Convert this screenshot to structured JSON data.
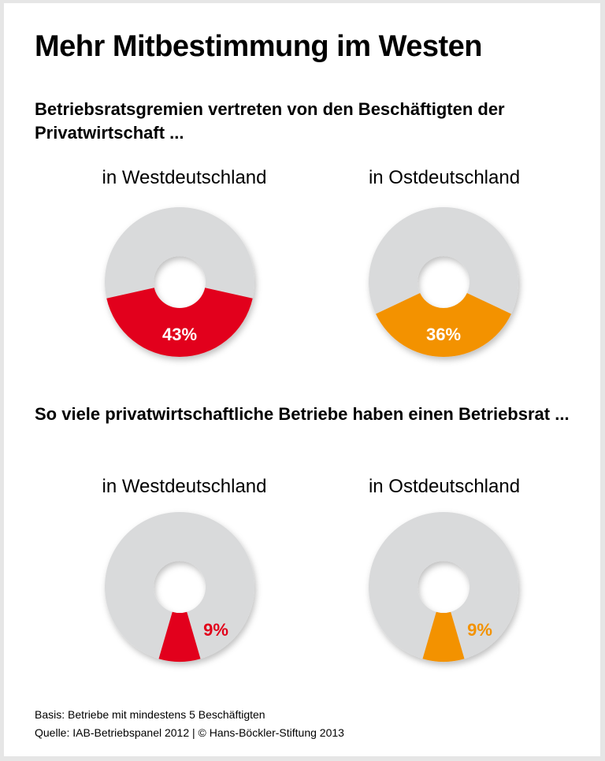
{
  "title": "Mehr Mitbestimmung im Westen",
  "colors": {
    "west": "#e2001a",
    "ost": "#f39200",
    "rest": "#d9dadb"
  },
  "chart_data": [
    {
      "type": "pie",
      "subtitle": "Betriebsratsgremien vertreten von den Beschäftigten der Privatwirtschaft ...",
      "panels": [
        {
          "label": "in Westdeutschland",
          "value": 43,
          "value_label": "43%",
          "color": "#e2001a"
        },
        {
          "label": "in Ostdeutschland",
          "value": 36,
          "value_label": "36%",
          "color": "#f39200"
        }
      ]
    },
    {
      "type": "pie",
      "subtitle": "So viele privatwirtschaftliche Betriebe haben einen Betriebsrat ...",
      "panels": [
        {
          "label": "in Westdeutschland",
          "value": 9,
          "value_label": "9%",
          "color": "#e2001a"
        },
        {
          "label": "in Ostdeutschland",
          "value": 9,
          "value_label": "9%",
          "color": "#f39200"
        }
      ]
    }
  ],
  "footer": {
    "basis": "Basis: Betriebe mit mindestens 5 Beschäftigten",
    "source": "Quelle: IAB-Betriebspanel 2012 | © Hans-Böckler-Stiftung 2013"
  }
}
